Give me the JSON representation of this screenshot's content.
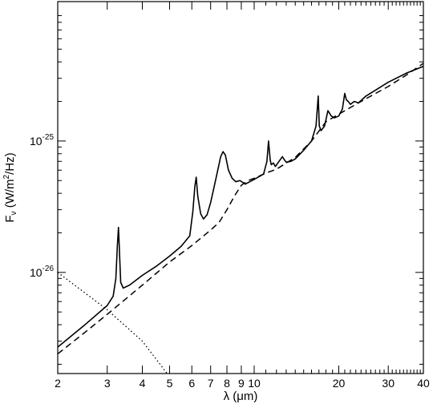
{
  "chart_data": {
    "type": "line",
    "title": "",
    "xlabel": "λ (μm)",
    "ylabel": "F_ν (W/m²/Hz)",
    "ylabel_parts": {
      "base": "F",
      "sub": "ν",
      "open": " (W/m",
      "sup": "2",
      "close": "/Hz)"
    },
    "xscale": "log",
    "yscale": "log",
    "xlim": [
      2,
      40
    ],
    "ylim": [
      1.7e-27,
      1.15e-24
    ],
    "x_ticks": [
      2,
      3,
      4,
      5,
      6,
      7,
      8,
      9,
      10,
      20,
      30,
      40
    ],
    "x_tick_labels": [
      "2",
      "3",
      "4",
      "5",
      "6",
      "7",
      "8",
      "9",
      "10",
      "20",
      "30",
      "40"
    ],
    "y_ticks": [
      1e-26,
      1e-25
    ],
    "y_tick_labels": [
      {
        "base": "10",
        "exp": "-26"
      },
      {
        "base": "10",
        "exp": "-25"
      }
    ],
    "legend": "none",
    "grid": false,
    "series": [
      {
        "style": "solid",
        "x": [
          2.0,
          2.5,
          3.0,
          3.15,
          3.22,
          3.26,
          3.29,
          3.31,
          3.35,
          3.42,
          3.6,
          4.0,
          4.5,
          5.0,
          5.5,
          5.9,
          6.05,
          6.15,
          6.22,
          6.3,
          6.45,
          6.6,
          6.8,
          7.0,
          7.3,
          7.6,
          7.75,
          7.9,
          8.1,
          8.35,
          8.6,
          8.9,
          9.3,
          10.0,
          10.8,
          11.1,
          11.25,
          11.4,
          11.5,
          11.7,
          11.9,
          12.2,
          12.6,
          12.8,
          13.0,
          13.5,
          14.0,
          15.0,
          16.0,
          16.6,
          16.9,
          17.05,
          17.3,
          17.8,
          18.3,
          18.8,
          19.3,
          20.0,
          20.6,
          21.0,
          21.3,
          21.6,
          22.0,
          22.7,
          23.5,
          25.0,
          30.0,
          35.0,
          40.0
        ],
        "y": [
          2.7e-27,
          4e-27,
          5.6e-27,
          6.6e-27,
          9e-27,
          1.6e-26,
          2.2e-26,
          1.6e-26,
          8.4e-27,
          7.6e-27,
          8e-27,
          9.5e-27,
          1.12e-26,
          1.33e-26,
          1.58e-26,
          1.9e-26,
          2.9e-26,
          4.5e-26,
          5.3e-26,
          3.8e-26,
          2.8e-26,
          2.55e-26,
          2.75e-26,
          3.4e-26,
          5.1e-26,
          7.6e-26,
          8.3e-26,
          7.8e-26,
          6e-26,
          5.2e-26,
          4.9e-26,
          5e-26,
          4.7e-26,
          5.1e-26,
          5.6e-26,
          7e-26,
          1e-25,
          7.2e-26,
          6.6e-26,
          6.8e-26,
          6.4e-26,
          6.9e-26,
          7.6e-26,
          7.2e-26,
          6.9e-26,
          7e-26,
          7.3e-26,
          8.5e-26,
          1e-25,
          1.3e-25,
          2.2e-25,
          1.3e-25,
          1.2e-25,
          1.3e-25,
          1.7e-25,
          1.55e-25,
          1.5e-25,
          1.55e-25,
          1.75e-25,
          2.3e-25,
          2.05e-25,
          2e-25,
          1.9e-25,
          2e-25,
          1.95e-25,
          2.2e-25,
          2.8e-25,
          3.3e-25,
          3.7e-25
        ]
      },
      {
        "style": "dashed",
        "x": [
          2.0,
          2.5,
          3.0,
          4.0,
          5.0,
          6.0,
          7.0,
          7.5,
          8.0,
          8.5,
          9.0,
          9.5,
          10.0,
          11.0,
          12.0,
          14.0,
          16.0,
          18.0,
          20.0,
          24.0,
          30.0,
          35.0,
          40.0
        ],
        "y": [
          2.4e-27,
          3.5e-27,
          4.8e-27,
          8e-27,
          1.2e-26,
          1.6e-26,
          2.1e-26,
          2.4e-26,
          3e-26,
          3.8e-26,
          4.6e-26,
          5e-26,
          5.2e-26,
          5.7e-26,
          6.1e-26,
          7.5e-26,
          1e-25,
          1.4e-25,
          1.6e-25,
          2e-25,
          2.6e-25,
          3.2e-25,
          3.9e-25
        ]
      },
      {
        "style": "dotted",
        "x": [
          2.0,
          3.0,
          4.0,
          4.9
        ],
        "y": [
          1e-26,
          5.2e-27,
          3e-27,
          1.7e-27
        ]
      }
    ]
  }
}
